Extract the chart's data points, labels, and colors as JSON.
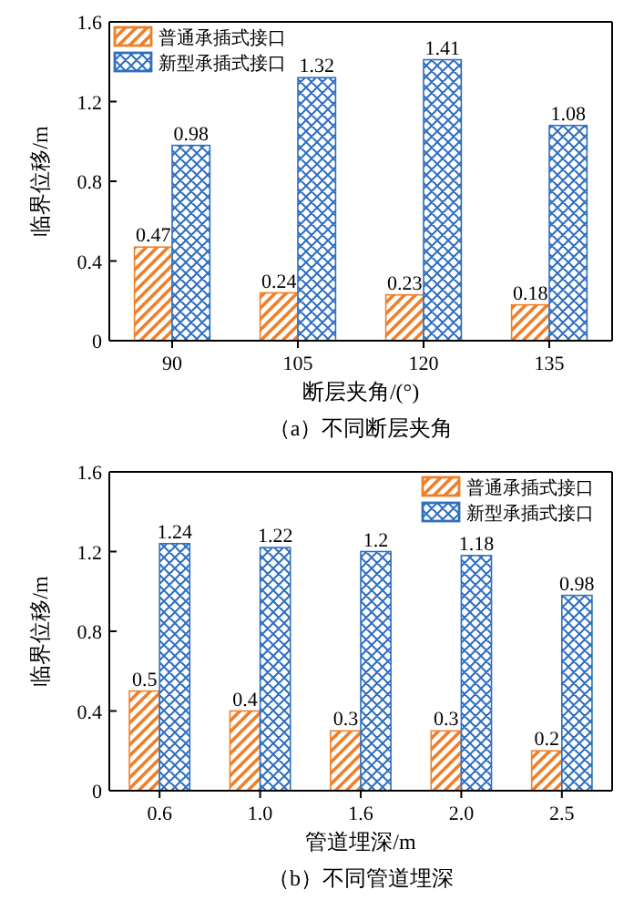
{
  "chart_data": [
    {
      "type": "bar",
      "title": "（a）不同断层夹角",
      "xlabel": "断层夹角/(°)",
      "ylabel": "临界位移/m",
      "categories": [
        "90",
        "105",
        "120",
        "135"
      ],
      "series": [
        {
          "name": "普通承插式接口",
          "color": "#f07f2a",
          "values": [
            0.47,
            0.24,
            0.23,
            0.18
          ]
        },
        {
          "name": "新型承插式接口",
          "color": "#2f6fc0",
          "values": [
            0.98,
            1.32,
            1.41,
            1.08
          ]
        }
      ],
      "ylim": [
        0,
        1.6
      ],
      "yticks": [
        0,
        0.4,
        0.8,
        1.2,
        1.6
      ],
      "data_labels": true,
      "legend": "top left",
      "grid": false
    },
    {
      "type": "bar",
      "title": "（b）不同管道埋深",
      "xlabel": "管道埋深/m",
      "ylabel": "临界位移/m",
      "categories": [
        "0.6",
        "1.0",
        "1.6",
        "2.0",
        "2.5"
      ],
      "series": [
        {
          "name": "普通承插式接口",
          "color": "#f07f2a",
          "values": [
            0.5,
            0.4,
            0.3,
            0.3,
            0.2
          ]
        },
        {
          "name": "新型承插式接口",
          "color": "#2f6fc0",
          "values": [
            1.24,
            1.22,
            1.2,
            1.18,
            0.98
          ]
        }
      ],
      "ylim": [
        0,
        1.6
      ],
      "yticks": [
        0,
        0.4,
        0.8,
        1.2,
        1.6
      ],
      "data_labels": true,
      "legend": "top right",
      "grid": false
    }
  ]
}
